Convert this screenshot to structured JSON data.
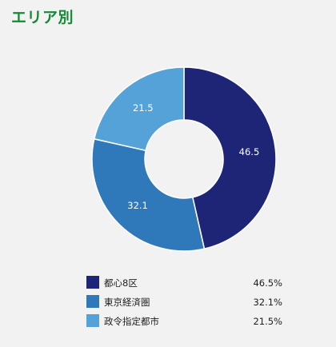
{
  "title": "エリア別",
  "chart_data": {
    "type": "pie",
    "categories": [
      "都心8区",
      "東京経済圏",
      "政令指定都市"
    ],
    "values": [
      46.5,
      32.1,
      21.5
    ],
    "legend_values": [
      "46.5%",
      "32.1%",
      "21.5%"
    ],
    "colors": [
      "#1e2576",
      "#2f78b9",
      "#55a2d8"
    ],
    "label_color": "#ffffff",
    "legend_placement": "bottom"
  }
}
